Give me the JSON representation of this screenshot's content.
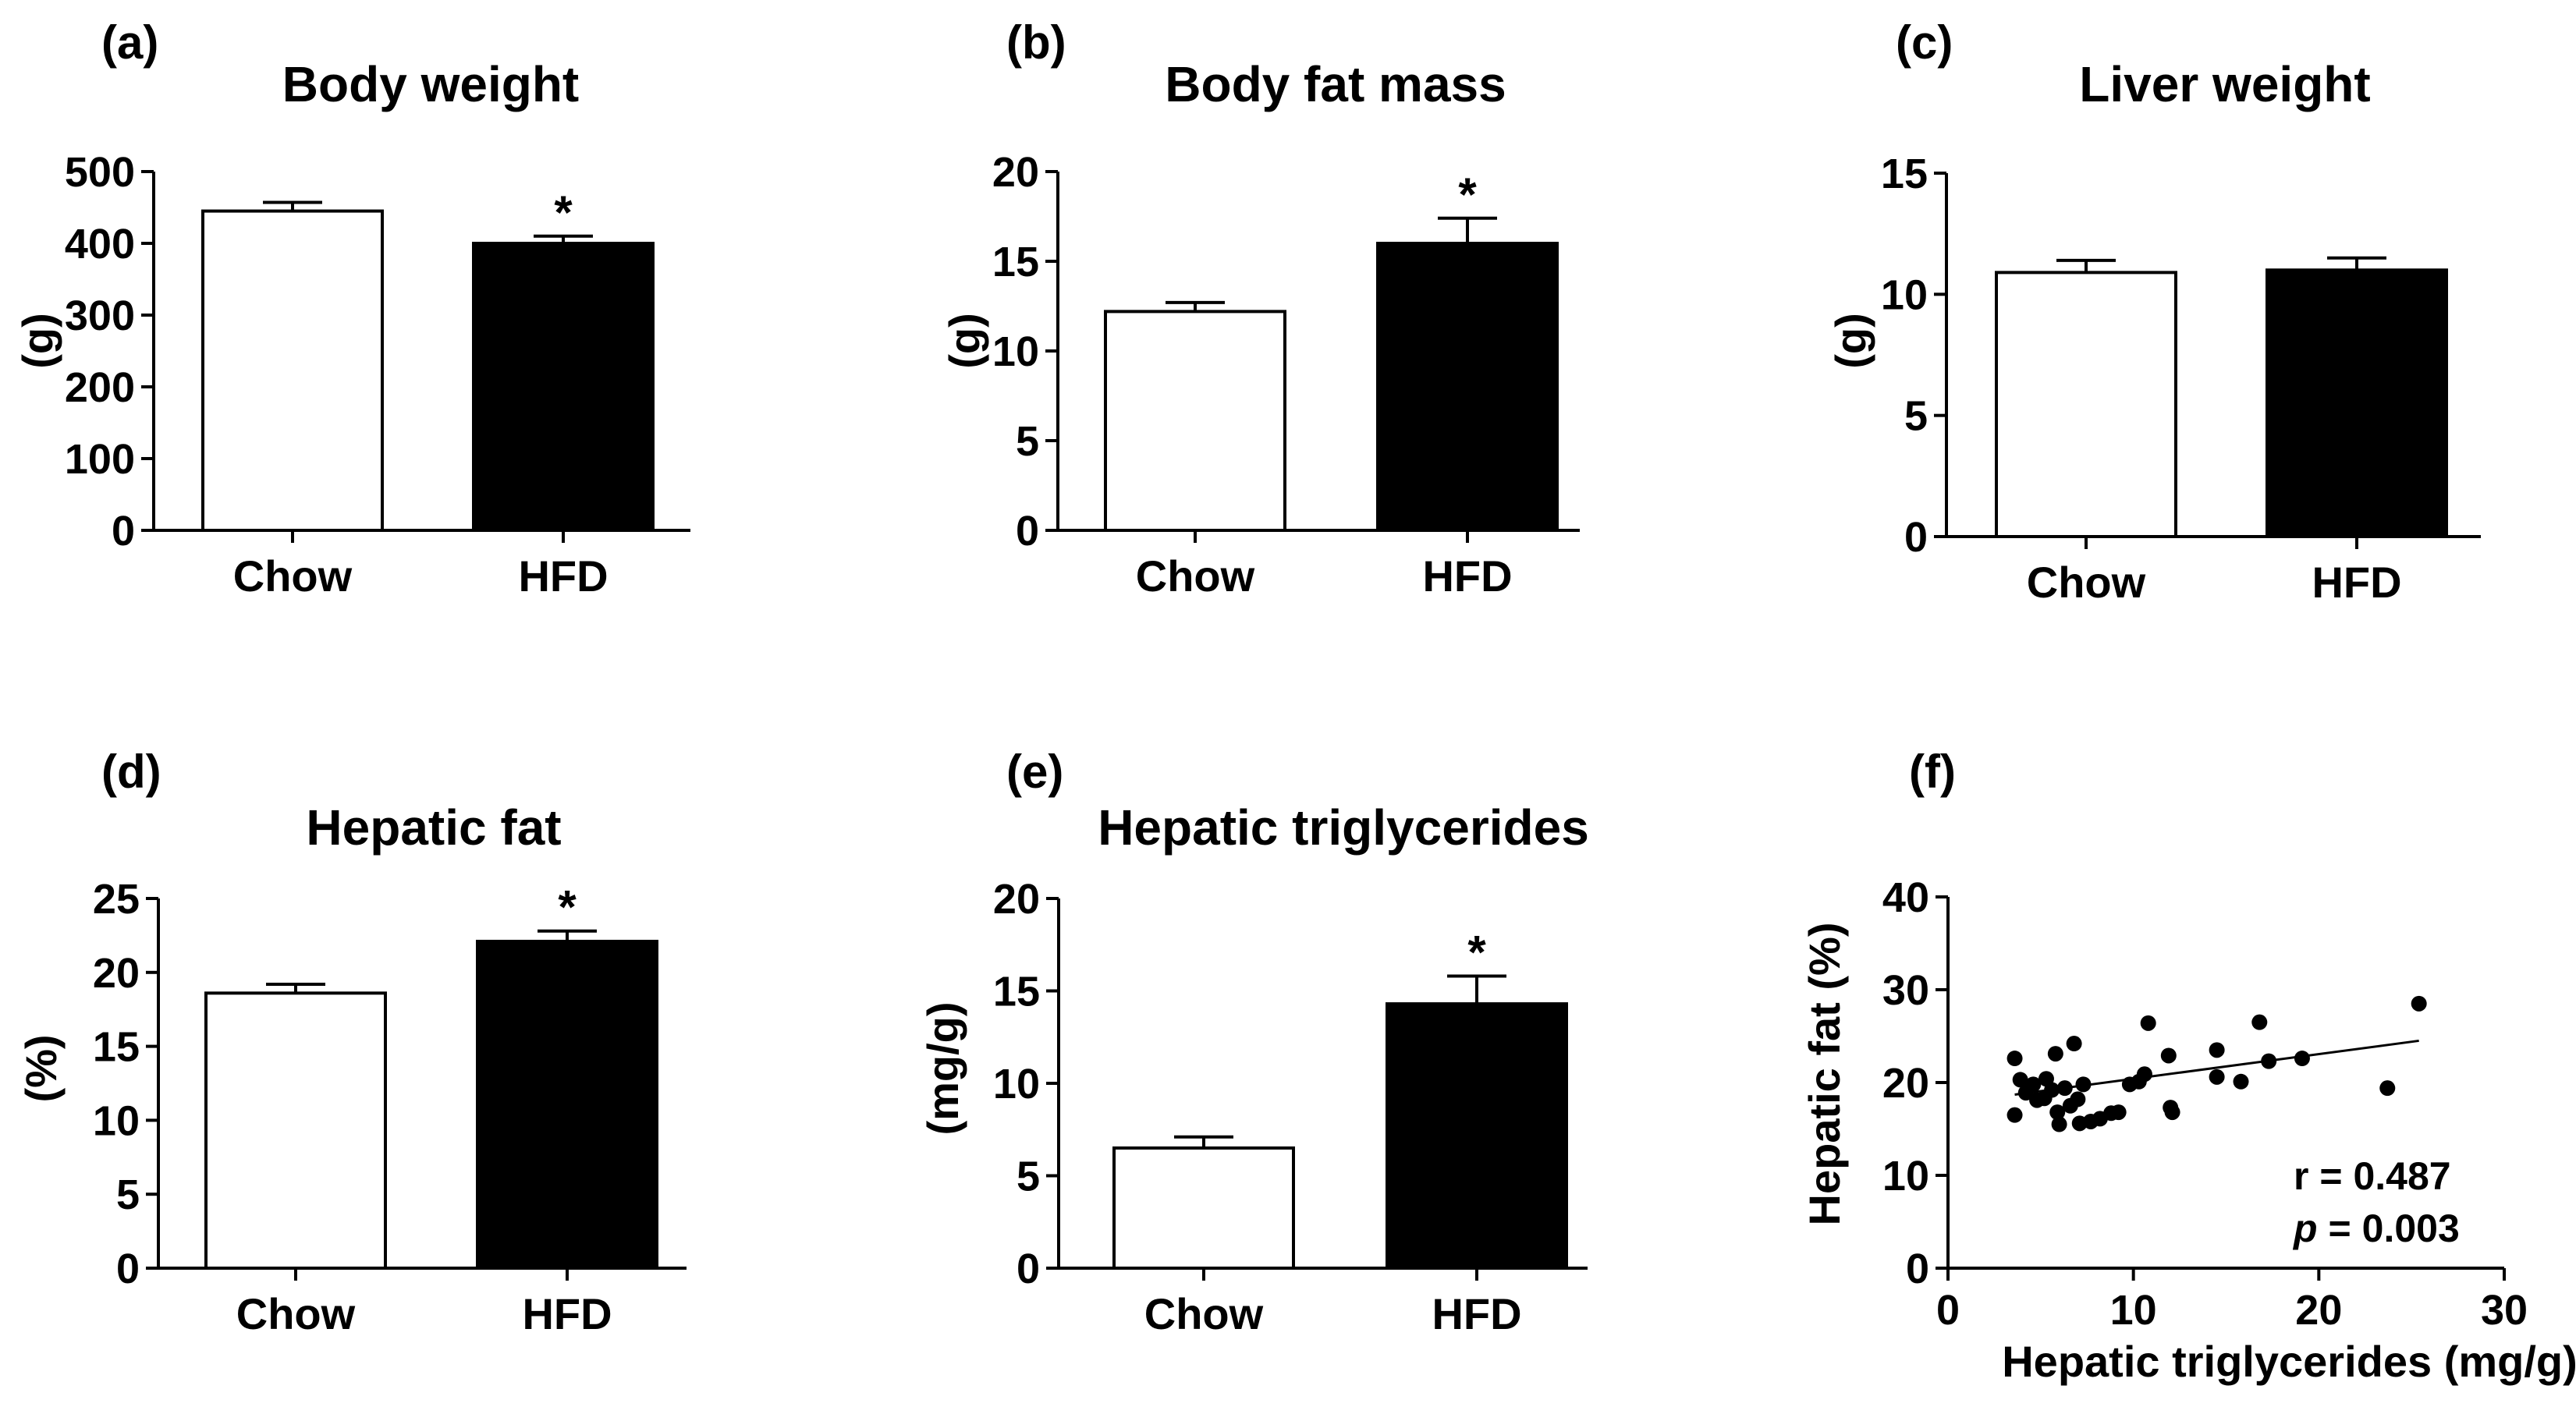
{
  "chart_data": [
    {
      "type": "bar",
      "panel_label": "(a)",
      "title": "Body weight",
      "ylabel": "(g)",
      "ylim": [
        0,
        500
      ],
      "yticks": [
        "0",
        "100",
        "200",
        "300",
        "400",
        "500"
      ],
      "categories": [
        "Chow",
        "HFD"
      ],
      "values": [
        445,
        400
      ],
      "errors": [
        12,
        10
      ],
      "significance": [
        "",
        "*"
      ],
      "bar_colors": [
        "#ffffff",
        "#000000"
      ]
    },
    {
      "type": "bar",
      "panel_label": "(b)",
      "title": "Body fat mass",
      "ylabel": "(g)",
      "ylim": [
        0,
        20
      ],
      "yticks": [
        "0",
        "5",
        "10",
        "15",
        "20"
      ],
      "categories": [
        "Chow",
        "HFD"
      ],
      "values": [
        12.2,
        16.0
      ],
      "errors": [
        0.5,
        1.4
      ],
      "significance": [
        "",
        "*"
      ],
      "bar_colors": [
        "#ffffff",
        "#000000"
      ]
    },
    {
      "type": "bar",
      "panel_label": "(c)",
      "title": "Liver weight",
      "ylabel": "(g)",
      "ylim": [
        0,
        15
      ],
      "yticks": [
        "0",
        "5",
        "10",
        "15"
      ],
      "categories": [
        "Chow",
        "HFD"
      ],
      "values": [
        10.9,
        11.0
      ],
      "errors": [
        0.5,
        0.5
      ],
      "significance": [
        "",
        ""
      ],
      "bar_colors": [
        "#ffffff",
        "#000000"
      ]
    },
    {
      "type": "bar",
      "panel_label": "(d)",
      "title": "Hepatic fat",
      "ylabel": "(%)",
      "ylim": [
        0,
        25
      ],
      "yticks": [
        "0",
        "5",
        "10",
        "15",
        "20",
        "25"
      ],
      "categories": [
        "Chow",
        "HFD"
      ],
      "values": [
        18.6,
        22.1
      ],
      "errors": [
        0.6,
        0.7
      ],
      "significance": [
        "",
        "*"
      ],
      "bar_colors": [
        "#ffffff",
        "#000000"
      ]
    },
    {
      "type": "bar",
      "panel_label": "(e)",
      "title": "Hepatic triglycerides",
      "ylabel": "(mg/g)",
      "ylim": [
        0,
        20
      ],
      "yticks": [
        "0",
        "5",
        "10",
        "15",
        "20"
      ],
      "categories": [
        "Chow",
        "HFD"
      ],
      "values": [
        6.5,
        14.3
      ],
      "errors": [
        0.6,
        1.5
      ],
      "significance": [
        "",
        "*"
      ],
      "bar_colors": [
        "#ffffff",
        "#000000"
      ]
    },
    {
      "type": "scatter",
      "panel_label": "(f)",
      "title": "",
      "xlabel": "Hepatic triglycerides (mg/g)",
      "ylabel": "Hepatic fat (%)",
      "xlim": [
        0,
        30
      ],
      "ylim": [
        0,
        40
      ],
      "xticks": [
        "0",
        "10",
        "20",
        "30"
      ],
      "yticks": [
        "0",
        "10",
        "20",
        "30",
        "40"
      ],
      "points": [
        [
          3.6,
          22.6
        ],
        [
          3.6,
          16.5
        ],
        [
          3.9,
          20.3
        ],
        [
          4.2,
          18.9
        ],
        [
          4.6,
          19.8
        ],
        [
          4.8,
          18.1
        ],
        [
          5.2,
          18.3
        ],
        [
          5.3,
          20.4
        ],
        [
          5.6,
          19.2
        ],
        [
          5.8,
          23.1
        ],
        [
          5.9,
          16.8
        ],
        [
          6.0,
          15.5
        ],
        [
          6.3,
          19.4
        ],
        [
          6.6,
          17.5
        ],
        [
          6.8,
          24.2
        ],
        [
          7.0,
          18.2
        ],
        [
          7.1,
          15.6
        ],
        [
          7.3,
          19.8
        ],
        [
          7.7,
          15.8
        ],
        [
          8.2,
          16.1
        ],
        [
          8.8,
          16.7
        ],
        [
          9.2,
          16.8
        ],
        [
          9.8,
          19.8
        ],
        [
          10.3,
          20.1
        ],
        [
          10.6,
          20.9
        ],
        [
          10.8,
          26.4
        ],
        [
          11.9,
          22.9
        ],
        [
          12.0,
          17.3
        ],
        [
          12.1,
          16.8
        ],
        [
          14.5,
          23.5
        ],
        [
          14.5,
          20.6
        ],
        [
          15.8,
          20.1
        ],
        [
          16.8,
          26.5
        ],
        [
          17.3,
          22.3
        ],
        [
          19.1,
          22.6
        ],
        [
          23.7,
          19.4
        ],
        [
          25.4,
          28.5
        ]
      ],
      "regression": {
        "x": [
          3.6,
          25.4
        ],
        "y": [
          18.7,
          24.5
        ]
      },
      "annotations": {
        "r_text": "r = 0.487",
        "p_label": "p",
        "p_value": "= 0.003"
      }
    }
  ]
}
